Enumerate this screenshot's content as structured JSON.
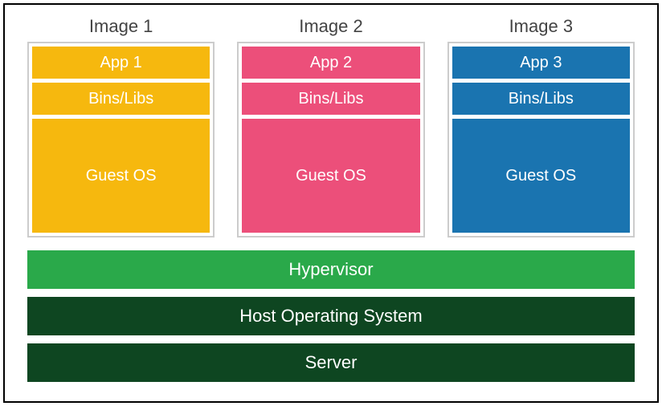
{
  "diagram": {
    "type": "infographic",
    "background_color": "#ffffff",
    "frame_border_color": "#000000",
    "image_box_border_color": "#cccccc",
    "text_color": "#ffffff",
    "title_color": "#434343",
    "title_fontsize": 22,
    "cell_fontsize": 20,
    "stack_fontsize": 22,
    "images": [
      {
        "title": "Image 1",
        "color": "#f6b80e",
        "layers": {
          "app": "App 1",
          "bins": "Bins/Libs",
          "guest": "Guest OS"
        }
      },
      {
        "title": "Image 2",
        "color": "#ec4f7a",
        "layers": {
          "app": "App 2",
          "bins": "Bins/Libs",
          "guest": "Guest OS"
        }
      },
      {
        "title": "Image 3",
        "color": "#1a74b0",
        "layers": {
          "app": "App 3",
          "bins": "Bins/Libs",
          "guest": "Guest OS"
        }
      }
    ],
    "stack": [
      {
        "label": "Hypervisor",
        "color": "#2aa94a"
      },
      {
        "label": "Host Operating System",
        "color": "#0e4621"
      },
      {
        "label": "Server",
        "color": "#0e4621"
      }
    ]
  }
}
